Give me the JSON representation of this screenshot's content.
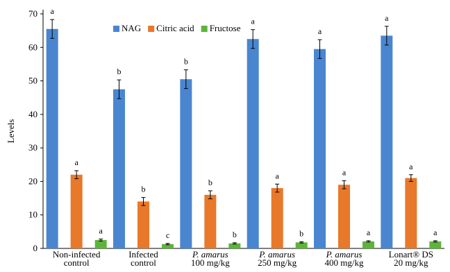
{
  "chart_data": {
    "type": "bar",
    "ylabel": "Levels",
    "xlabel": "",
    "ylim": [
      0,
      70
    ],
    "yticks": [
      0,
      10,
      20,
      30,
      40,
      50,
      60,
      70
    ],
    "grid": false,
    "legend_position": "top-center",
    "categories": [
      [
        "Non-infected",
        "control"
      ],
      [
        "Infected",
        "control"
      ],
      [
        "P. amarus",
        "100 mg/kg"
      ],
      [
        "P. amarus",
        "250 mg/kg"
      ],
      [
        "P. amarus",
        "400 mg/kg"
      ],
      [
        "Lonart® DS",
        "20 mg/kg"
      ]
    ],
    "series": [
      {
        "name": "NAG",
        "color": "#4a86d0",
        "values": [
          65.5,
          47.5,
          50.5,
          62.5,
          59.5,
          63.5
        ],
        "errors": [
          2.8,
          2.8,
          2.8,
          2.8,
          2.8,
          2.8
        ],
        "labels": [
          "a",
          "b",
          "b",
          "a",
          "a",
          "a"
        ]
      },
      {
        "name": "Citric acid",
        "color": "#e8782a",
        "values": [
          22,
          14,
          16,
          18,
          19,
          21
        ],
        "errors": [
          1.2,
          1.2,
          1.2,
          1.2,
          1.2,
          1.0
        ],
        "labels": [
          "a",
          "b",
          "b",
          "a",
          "a",
          "a"
        ]
      },
      {
        "name": "Fructose",
        "color": "#5cb53a",
        "values": [
          2.5,
          1.3,
          1.5,
          1.8,
          2.1,
          2.1
        ],
        "errors": [
          0.3,
          0.2,
          0.2,
          0.2,
          0.2,
          0.2
        ],
        "labels": [
          "a",
          "c",
          "b",
          "b",
          "a",
          "a"
        ]
      }
    ]
  }
}
